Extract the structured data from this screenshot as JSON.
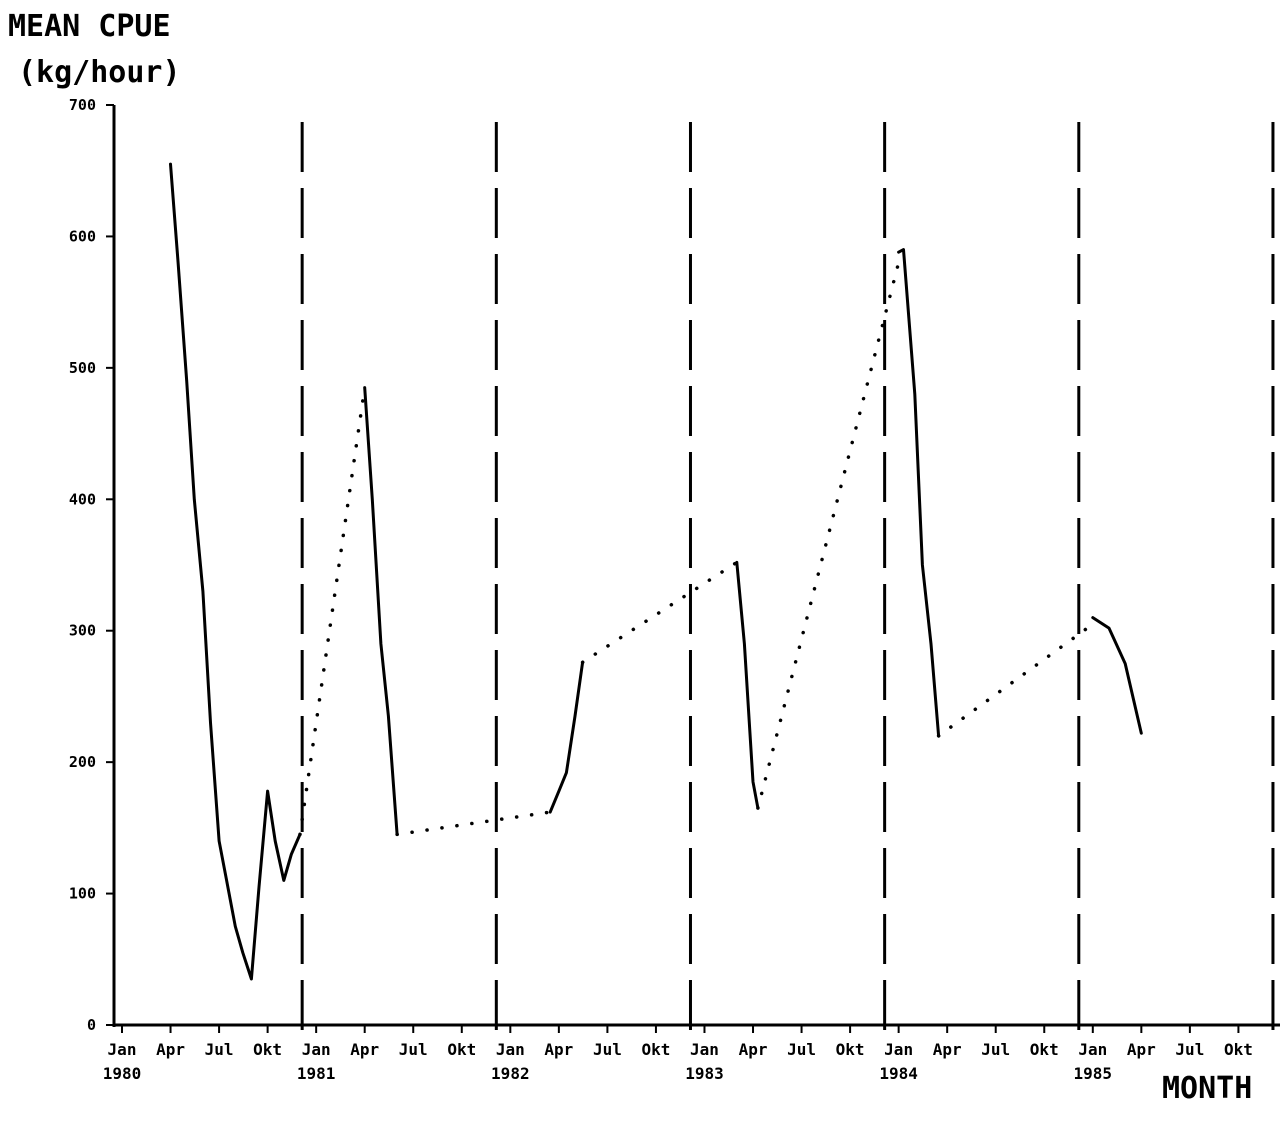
{
  "chart_data": {
    "type": "line",
    "ylabel_line1": "MEAN CPUE",
    "ylabel_line2": "(kg/hour)",
    "xlabel": "MONTH",
    "ylim": [
      0,
      700
    ],
    "y_ticks": [
      "0",
      "100",
      "200",
      "300",
      "400",
      "500",
      "600",
      "700"
    ],
    "x_range_months": [
      "1980-01",
      "1985-12"
    ],
    "month_labels": [
      "Jan",
      "Apr",
      "Jul",
      "Okt"
    ],
    "year_labels": [
      "1980",
      "1981",
      "1982",
      "1983",
      "1984",
      "1985"
    ],
    "year_boundaries": [
      "1981-01",
      "1982-01",
      "1983-01",
      "1984-01",
      "1985-01",
      "1986-01"
    ],
    "grid": "dashed vertical lines at each January",
    "series": [
      {
        "style": "solid",
        "points": [
          [
            "1980-04-01",
            655
          ],
          [
            "1980-04-15",
            580
          ],
          [
            "1980-05-01",
            490
          ],
          [
            "1980-05-15",
            400
          ],
          [
            "1980-06-01",
            330
          ],
          [
            "1980-06-15",
            230
          ],
          [
            "1980-07-01",
            140
          ],
          [
            "1980-07-15",
            110
          ],
          [
            "1980-08-01",
            75
          ],
          [
            "1980-08-15",
            55
          ],
          [
            "1980-09-01",
            35
          ],
          [
            "1980-09-15",
            105
          ],
          [
            "1980-10-01",
            178
          ],
          [
            "1980-10-15",
            140
          ],
          [
            "1980-11-01",
            110
          ],
          [
            "1980-11-15",
            130
          ],
          [
            "1980-12-01",
            145
          ]
        ]
      },
      {
        "style": "dotted",
        "points": [
          [
            "1980-12-01",
            145
          ],
          [
            "1981-04-01",
            485
          ]
        ]
      },
      {
        "style": "solid",
        "points": [
          [
            "1981-04-01",
            485
          ],
          [
            "1981-04-15",
            400
          ],
          [
            "1981-05-01",
            290
          ],
          [
            "1981-05-15",
            235
          ],
          [
            "1981-06-01",
            145
          ]
        ]
      },
      {
        "style": "dotted",
        "points": [
          [
            "1981-06-01",
            145
          ],
          [
            "1982-03-15",
            162
          ]
        ]
      },
      {
        "style": "solid",
        "points": [
          [
            "1982-03-15",
            162
          ],
          [
            "1982-04-01",
            178
          ],
          [
            "1982-04-15",
            192
          ],
          [
            "1982-05-01",
            235
          ],
          [
            "1982-05-15",
            276
          ]
        ]
      },
      {
        "style": "dotted",
        "points": [
          [
            "1982-05-15",
            276
          ],
          [
            "1983-03-01",
            352
          ]
        ]
      },
      {
        "style": "solid",
        "points": [
          [
            "1983-03-01",
            352
          ],
          [
            "1983-03-15",
            290
          ],
          [
            "1983-04-01",
            185
          ],
          [
            "1983-04-10",
            165
          ]
        ]
      },
      {
        "style": "dotted",
        "points": [
          [
            "1983-04-10",
            165
          ],
          [
            "1984-01-01",
            580
          ]
        ]
      },
      {
        "style": "solid",
        "points": [
          [
            "1984-01-01",
            588
          ],
          [
            "1984-01-10",
            590
          ],
          [
            "1984-02-01",
            480
          ],
          [
            "1984-02-15",
            350
          ],
          [
            "1984-03-01",
            290
          ],
          [
            "1984-03-15",
            220
          ]
        ]
      },
      {
        "style": "dotted",
        "points": [
          [
            "1984-03-15",
            220
          ],
          [
            "1985-01-01",
            305
          ]
        ]
      },
      {
        "style": "solid",
        "points": [
          [
            "1985-01-01",
            310
          ],
          [
            "1985-02-01",
            302
          ],
          [
            "1985-03-01",
            275
          ],
          [
            "1985-04-01",
            222
          ]
        ]
      }
    ]
  }
}
